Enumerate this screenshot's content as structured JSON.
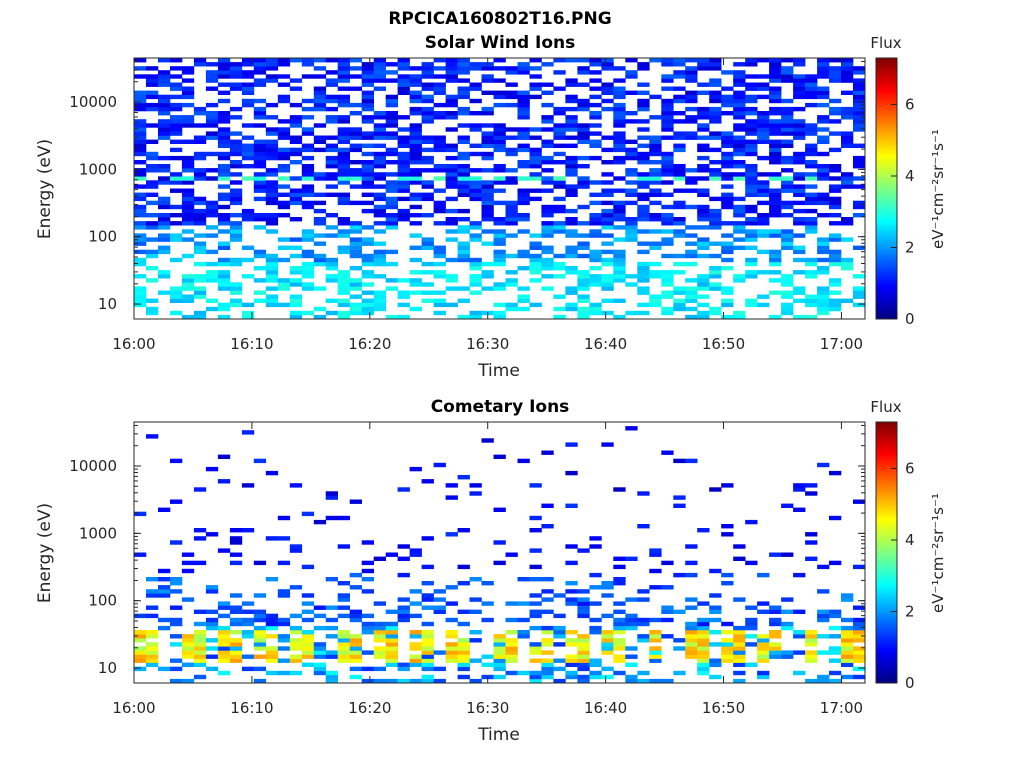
{
  "figure_title": "RPCICA160802T16.PNG",
  "colorbar_colors": [
    "#00007f",
    "#0000ff",
    "#007fff",
    "#00ffff",
    "#7fff7f",
    "#ffff00",
    "#ff7f00",
    "#ff0000",
    "#7f0000"
  ],
  "chart_data": [
    {
      "type": "heatmap",
      "title": "Solar Wind Ions",
      "xlabel": "Time",
      "ylabel": "Energy (eV)",
      "x_range": [
        "16:00",
        "17:02"
      ],
      "x_ticks": [
        "16:00",
        "16:10",
        "16:20",
        "16:30",
        "16:40",
        "16:50",
        "17:00"
      ],
      "y_scale": "log",
      "y_range": [
        6,
        45000
      ],
      "y_ticks": [
        "10",
        "100",
        "1000",
        "10000"
      ],
      "colorbar": {
        "title": "Flux",
        "label": "eV⁻¹cm⁻²sr⁻¹s⁻¹",
        "range": [
          0,
          7.3
        ],
        "ticks": [
          "0",
          "2",
          "4",
          "6"
        ]
      },
      "pattern": {
        "high_energy_band": {
          "energy_eV": [
            150,
            40000
          ],
          "typical_flux": 1.0,
          "coverage": 0.55
        },
        "mid_energy_band": {
          "energy_eV": [
            40,
            150
          ],
          "typical_flux": 2.0,
          "coverage": 0.45
        },
        "low_energy_band": {
          "energy_eV": [
            6,
            40
          ],
          "typical_flux": 2.6,
          "coverage": 0.4
        },
        "streak_energy_eV": 750,
        "streak_flux": 2.9
      }
    },
    {
      "type": "heatmap",
      "title": "Cometary Ions",
      "xlabel": "Time",
      "ylabel": "Energy (eV)",
      "x_range": [
        "16:00",
        "17:02"
      ],
      "x_ticks": [
        "16:00",
        "16:10",
        "16:20",
        "16:30",
        "16:40",
        "16:50",
        "17:00"
      ],
      "y_scale": "log",
      "y_range": [
        6,
        45000
      ],
      "y_ticks": [
        "10",
        "100",
        "1000",
        "10000"
      ],
      "colorbar": {
        "title": "Flux",
        "label": "eV⁻¹cm⁻²sr⁻¹s⁻¹",
        "range": [
          0,
          7.3
        ],
        "ticks": [
          "0",
          "2",
          "4",
          "6"
        ]
      },
      "pattern": {
        "high_energy_band": {
          "energy_eV": [
            250,
            40000
          ],
          "typical_flux": 0.9,
          "coverage": 0.12
        },
        "mid_energy_band": {
          "energy_eV": [
            40,
            250
          ],
          "typical_flux": 1.5,
          "coverage": 0.5
        },
        "low_energy_band": {
          "energy_eV": [
            6,
            40
          ],
          "typical_flux": 4.3,
          "coverage": 0.55
        },
        "burst_period_min": 3.3,
        "burst_energy_eV": [
          12,
          35
        ],
        "burst_flux": 4.6
      }
    }
  ]
}
